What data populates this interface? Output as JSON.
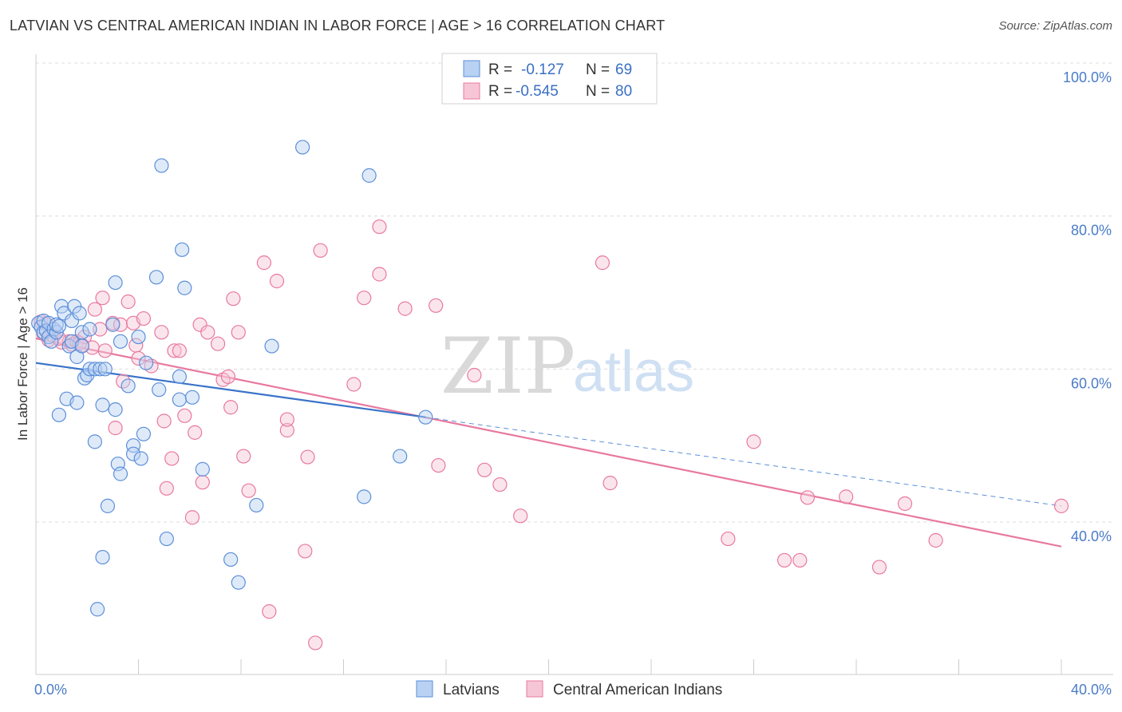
{
  "header": {
    "title": "LATVIAN VS CENTRAL AMERICAN INDIAN IN LABOR FORCE | AGE > 16 CORRELATION CHART",
    "source": "Source: ZipAtlas.com"
  },
  "watermark": {
    "zip": "ZIP",
    "atlas": "atlas"
  },
  "legend": {
    "rows": [
      {
        "r_label": "R =",
        "r_value": "-0.127",
        "n_label": "N =",
        "n_value": "69",
        "color": "#5b8fd9"
      },
      {
        "r_label": "R =",
        "r_value": "-0.545",
        "n_label": "N =",
        "n_value": "80",
        "color": "#e8799f"
      }
    ]
  },
  "bottom_legend": [
    {
      "label": "Latvians",
      "color": "#5b8fd9"
    },
    {
      "label": "Central American Indians",
      "color": "#e8799f"
    }
  ],
  "chart_data": {
    "type": "scatter",
    "title": "LATVIAN VS CENTRAL AMERICAN INDIAN IN LABOR FORCE | AGE > 16 CORRELATION CHART",
    "xlabel": "",
    "ylabel": "In Labor Force | Age > 16",
    "xlim": [
      0,
      40
    ],
    "ylim": [
      20,
      102
    ],
    "x_ticks": [
      "0.0%",
      "40.0%"
    ],
    "y_ticks": [
      {
        "value": 100,
        "label": "100.0%"
      },
      {
        "value": 80,
        "label": "80.0%"
      },
      {
        "value": 60,
        "label": "60.0%"
      },
      {
        "value": 40,
        "label": "40.0%"
      }
    ],
    "series": [
      {
        "name": "Latvians",
        "color": "#5b8fd9",
        "r": -0.127,
        "n": 69,
        "trend": {
          "x0": 0,
          "y0": 60.8,
          "x1": 15.2,
          "y1": 53.7,
          "dashed_to_x": 40,
          "dashed_to_y": 42.1
        },
        "points": [
          [
            0.1,
            66.0
          ],
          [
            0.2,
            65.5
          ],
          [
            0.3,
            64.8
          ],
          [
            0.3,
            66.3
          ],
          [
            0.4,
            65.0
          ],
          [
            0.5,
            64.2
          ],
          [
            0.5,
            66.0
          ],
          [
            0.6,
            63.6
          ],
          [
            0.7,
            65.2
          ],
          [
            0.8,
            64.8
          ],
          [
            0.8,
            65.8
          ],
          [
            0.9,
            65.6
          ],
          [
            0.9,
            54.0
          ],
          [
            1.0,
            68.2
          ],
          [
            1.1,
            67.3
          ],
          [
            1.2,
            56.1
          ],
          [
            1.3,
            63.0
          ],
          [
            1.4,
            66.3
          ],
          [
            1.4,
            63.6
          ],
          [
            1.5,
            68.2
          ],
          [
            1.6,
            61.6
          ],
          [
            1.6,
            55.6
          ],
          [
            1.7,
            67.3
          ],
          [
            1.8,
            64.8
          ],
          [
            1.8,
            63.0
          ],
          [
            1.9,
            58.8
          ],
          [
            2.0,
            59.2
          ],
          [
            2.1,
            60.0
          ],
          [
            2.1,
            65.2
          ],
          [
            2.3,
            60.0
          ],
          [
            2.3,
            50.5
          ],
          [
            2.5,
            60.0
          ],
          [
            2.6,
            55.3
          ],
          [
            2.6,
            35.4
          ],
          [
            2.7,
            60.0
          ],
          [
            2.8,
            42.1
          ],
          [
            3.0,
            65.8
          ],
          [
            3.1,
            54.7
          ],
          [
            3.1,
            71.3
          ],
          [
            3.2,
            47.6
          ],
          [
            3.3,
            46.3
          ],
          [
            3.3,
            63.6
          ],
          [
            3.6,
            57.8
          ],
          [
            3.8,
            50.0
          ],
          [
            3.8,
            48.9
          ],
          [
            4.0,
            64.2
          ],
          [
            4.1,
            48.3
          ],
          [
            4.2,
            51.5
          ],
          [
            4.3,
            60.8
          ],
          [
            4.7,
            72.0
          ],
          [
            4.8,
            57.3
          ],
          [
            4.9,
            86.6
          ],
          [
            5.1,
            37.8
          ],
          [
            5.6,
            59.0
          ],
          [
            5.6,
            56.0
          ],
          [
            5.7,
            75.6
          ],
          [
            5.8,
            70.6
          ],
          [
            6.1,
            56.3
          ],
          [
            6.5,
            46.9
          ],
          [
            7.6,
            35.1
          ],
          [
            7.9,
            32.1
          ],
          [
            8.6,
            42.2
          ],
          [
            9.2,
            63.0
          ],
          [
            10.4,
            89.0
          ],
          [
            2.4,
            28.6
          ],
          [
            12.8,
            43.3
          ],
          [
            13.0,
            85.3
          ],
          [
            14.2,
            48.6
          ],
          [
            15.2,
            53.7
          ]
        ]
      },
      {
        "name": "Central American Indians",
        "color": "#e8799f",
        "r": -0.545,
        "n": 80,
        "trend": {
          "x0": 0,
          "y0": 64.0,
          "x1": 40,
          "y1": 36.8
        },
        "points": [
          [
            0.2,
            66.2
          ],
          [
            0.3,
            64.6
          ],
          [
            0.4,
            65.9
          ],
          [
            0.5,
            63.8
          ],
          [
            0.7,
            64.3
          ],
          [
            1.0,
            63.5
          ],
          [
            1.3,
            63.6
          ],
          [
            1.4,
            63.2
          ],
          [
            1.6,
            63.6
          ],
          [
            1.7,
            63.4
          ],
          [
            1.9,
            64.2
          ],
          [
            2.2,
            62.8
          ],
          [
            2.3,
            67.8
          ],
          [
            2.5,
            65.2
          ],
          [
            2.6,
            69.3
          ],
          [
            2.7,
            62.4
          ],
          [
            3.0,
            66.0
          ],
          [
            3.1,
            52.3
          ],
          [
            3.3,
            65.8
          ],
          [
            3.4,
            58.4
          ],
          [
            3.6,
            68.8
          ],
          [
            3.8,
            66.0
          ],
          [
            3.9,
            63.1
          ],
          [
            4.0,
            61.4
          ],
          [
            4.2,
            66.6
          ],
          [
            4.5,
            60.4
          ],
          [
            4.9,
            64.8
          ],
          [
            5.0,
            53.2
          ],
          [
            5.1,
            44.4
          ],
          [
            5.3,
            48.3
          ],
          [
            5.4,
            62.4
          ],
          [
            5.6,
            62.4
          ],
          [
            5.8,
            53.9
          ],
          [
            6.1,
            40.6
          ],
          [
            6.2,
            51.7
          ],
          [
            6.4,
            65.8
          ],
          [
            6.5,
            45.2
          ],
          [
            6.7,
            64.8
          ],
          [
            7.1,
            63.3
          ],
          [
            7.3,
            58.6
          ],
          [
            7.5,
            59.0
          ],
          [
            7.6,
            55.0
          ],
          [
            7.7,
            69.2
          ],
          [
            7.9,
            64.8
          ],
          [
            8.1,
            48.6
          ],
          [
            8.3,
            44.1
          ],
          [
            8.9,
            73.9
          ],
          [
            9.1,
            28.3
          ],
          [
            9.4,
            71.5
          ],
          [
            9.8,
            52.0
          ],
          [
            9.8,
            53.4
          ],
          [
            10.5,
            36.2
          ],
          [
            10.6,
            48.5
          ],
          [
            10.9,
            24.2
          ],
          [
            11.1,
            75.5
          ],
          [
            12.4,
            58.0
          ],
          [
            12.8,
            69.3
          ],
          [
            13.4,
            72.4
          ],
          [
            13.4,
            78.6
          ],
          [
            14.4,
            67.9
          ],
          [
            15.6,
            68.3
          ],
          [
            15.7,
            47.4
          ],
          [
            17.1,
            59.2
          ],
          [
            17.5,
            46.8
          ],
          [
            18.1,
            44.9
          ],
          [
            18.9,
            40.8
          ],
          [
            22.1,
            73.9
          ],
          [
            22.4,
            45.1
          ],
          [
            27.0,
            37.8
          ],
          [
            28.0,
            50.5
          ],
          [
            29.2,
            35.0
          ],
          [
            29.8,
            35.0
          ],
          [
            30.1,
            43.2
          ],
          [
            31.6,
            43.3
          ],
          [
            32.9,
            34.1
          ],
          [
            33.9,
            42.4
          ],
          [
            35.1,
            37.6
          ],
          [
            40.0,
            42.1
          ],
          [
            1.8,
            63.1
          ],
          [
            0.9,
            64.0
          ]
        ]
      }
    ]
  }
}
